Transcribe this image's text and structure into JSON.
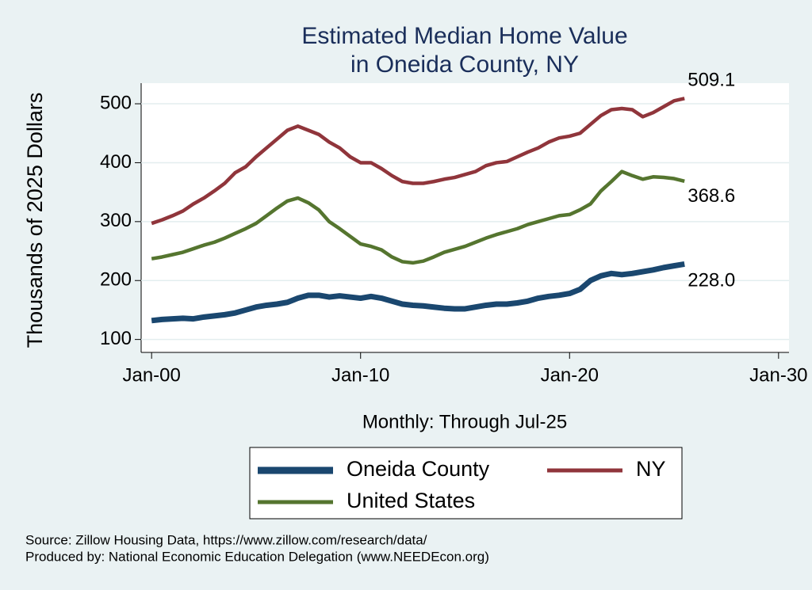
{
  "chart_data": {
    "type": "line",
    "title": [
      "Estimated Median Home Value",
      "in Oneida County, NY"
    ],
    "x_label": "Monthly: Through Jul-25",
    "y_label": "Thousands of 2025 Dollars",
    "x": [
      2000,
      2000.5,
      2001,
      2001.5,
      2002,
      2002.5,
      2003,
      2003.5,
      2004,
      2004.5,
      2005,
      2005.5,
      2006,
      2006.5,
      2007,
      2007.5,
      2008,
      2008.5,
      2009,
      2009.5,
      2010,
      2010.5,
      2011,
      2011.5,
      2012,
      2012.5,
      2013,
      2013.5,
      2014,
      2014.5,
      2015,
      2015.5,
      2016,
      2016.5,
      2017,
      2017.5,
      2018,
      2018.5,
      2019,
      2019.5,
      2020,
      2020.5,
      2021,
      2021.5,
      2022,
      2022.5,
      2023,
      2023.5,
      2024,
      2024.5,
      2025,
      2025.5
    ],
    "series": [
      {
        "name": "Oneida County",
        "color": "#1a476f",
        "values": [
          132,
          134,
          135,
          136,
          135,
          138,
          140,
          142,
          145,
          150,
          155,
          158,
          160,
          163,
          170,
          175,
          175,
          172,
          174,
          172,
          170,
          173,
          170,
          165,
          160,
          158,
          157,
          155,
          153,
          152,
          152,
          155,
          158,
          160,
          160,
          162,
          165,
          170,
          173,
          175,
          178,
          185,
          200,
          208,
          212,
          210,
          212,
          215,
          218,
          222,
          225,
          228
        ],
        "value_labels": [
          null,
          null,
          null,
          null,
          null,
          null,
          null,
          null,
          null,
          null,
          null,
          null,
          null,
          null,
          null,
          null,
          null,
          null,
          null,
          null,
          null,
          null,
          null,
          null,
          null,
          null,
          null,
          null,
          null,
          null,
          null,
          null,
          null,
          null,
          null,
          null,
          null,
          null,
          null,
          null,
          null,
          null,
          null,
          null,
          null,
          null,
          null,
          null,
          null,
          null,
          null,
          "228.0"
        ]
      },
      {
        "name": "NY",
        "color": "#90353b",
        "values": [
          297,
          303,
          310,
          318,
          330,
          340,
          352,
          365,
          383,
          393,
          410,
          425,
          440,
          455,
          462,
          455,
          448,
          435,
          425,
          410,
          400,
          400,
          390,
          378,
          368,
          365,
          365,
          368,
          372,
          375,
          380,
          385,
          395,
          400,
          402,
          410,
          418,
          425,
          435,
          442,
          445,
          450,
          465,
          480,
          490,
          492,
          490,
          478,
          485,
          495,
          505,
          509.1
        ]
      },
      {
        "name": "United States",
        "color": "#55752f",
        "values": [
          237,
          240,
          244,
          248,
          254,
          260,
          265,
          272,
          280,
          288,
          297,
          310,
          323,
          335,
          340,
          332,
          320,
          300,
          288,
          275,
          262,
          258,
          252,
          240,
          232,
          230,
          233,
          240,
          248,
          253,
          258,
          265,
          272,
          278,
          283,
          288,
          295,
          300,
          305,
          310,
          312,
          320,
          330,
          352,
          368,
          385,
          378,
          372,
          376,
          375,
          373,
          368.6
        ]
      }
    ],
    "xlim": [
      1999.5,
      2030.5
    ],
    "xticks": [
      {
        "value": 2000,
        "label": "Jan-00"
      },
      {
        "value": 2010,
        "label": "Jan-10"
      },
      {
        "value": 2020,
        "label": "Jan-20"
      },
      {
        "value": 2030,
        "label": "Jan-30"
      }
    ],
    "ylim": [
      78,
      535
    ],
    "yticks": [
      100,
      200,
      300,
      400,
      500
    ],
    "grid": true,
    "footnotes": [
      "Source: Zillow Housing Data, https://www.zillow.com/research/data/",
      "Produced by: National Economic Education Delegation (www.NEEDEcon.org)"
    ]
  }
}
